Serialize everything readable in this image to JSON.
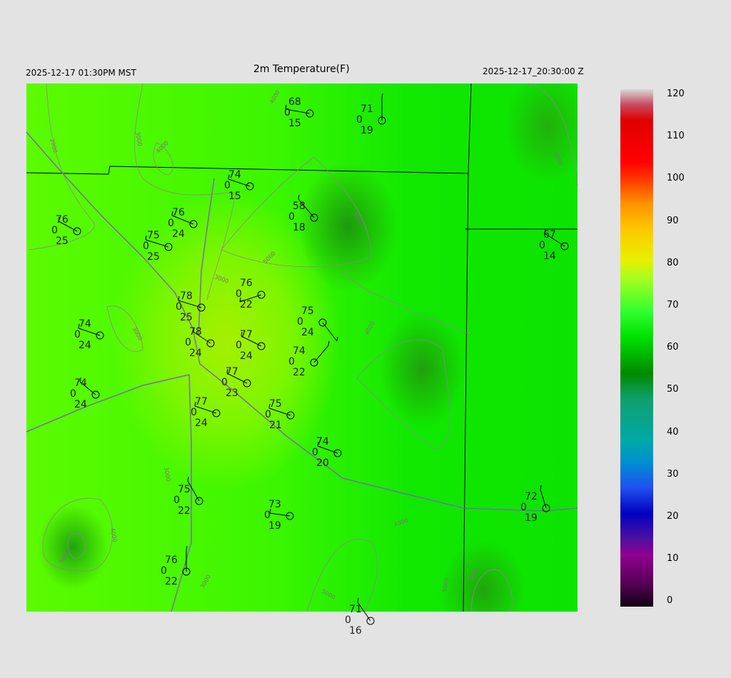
{
  "header": {
    "title": "2m Temperature(F)",
    "local_time": "2025-12-17 01:30PM MST",
    "utc_time": "2025-12-17_20:30:00 Z"
  },
  "colorbar": {
    "labels": [
      "120",
      "110",
      "100",
      "90",
      "80",
      "70",
      "60",
      "50",
      "40",
      "30",
      "20",
      "10",
      "0"
    ],
    "min": 0,
    "max": 120
  },
  "contour_labels": [
    "2000",
    "3000",
    "4000",
    "3000",
    "4000",
    "5000",
    "4000",
    "4000",
    "5000",
    "3000",
    "3000",
    "4000",
    "4000",
    "5000",
    "3000",
    "5000",
    "5000",
    "6000"
  ],
  "stations": [
    {
      "temp": "68",
      "cloud": "0",
      "dew": "15"
    },
    {
      "temp": "71",
      "cloud": "0",
      "dew": "19"
    },
    {
      "temp": "74",
      "cloud": "0",
      "dew": "15"
    },
    {
      "temp": "76",
      "cloud": "0",
      "dew": "25"
    },
    {
      "temp": "76",
      "cloud": "0",
      "dew": "24"
    },
    {
      "temp": "75",
      "cloud": "0",
      "dew": "25"
    },
    {
      "temp": "58",
      "cloud": "0",
      "dew": "18"
    },
    {
      "temp": "67",
      "cloud": "0",
      "dew": "14"
    },
    {
      "temp": "78",
      "cloud": "0",
      "dew": "25"
    },
    {
      "temp": "76",
      "cloud": "0",
      "dew": "22"
    },
    {
      "temp": "74",
      "cloud": "0",
      "dew": "24"
    },
    {
      "temp": "78",
      "cloud": "0",
      "dew": "24"
    },
    {
      "temp": "77",
      "cloud": "0",
      "dew": "24"
    },
    {
      "temp": "75",
      "cloud": "0",
      "dew": "24"
    },
    {
      "temp": "74",
      "cloud": "0",
      "dew": "22"
    },
    {
      "temp": "74",
      "cloud": "0",
      "dew": "24"
    },
    {
      "temp": "77",
      "cloud": "0",
      "dew": "23"
    },
    {
      "temp": "77",
      "cloud": "0",
      "dew": "24"
    },
    {
      "temp": "75",
      "cloud": "0",
      "dew": "21"
    },
    {
      "temp": "74",
      "cloud": "0",
      "dew": "20"
    },
    {
      "temp": "75",
      "cloud": "0",
      "dew": "22"
    },
    {
      "temp": "73",
      "cloud": "0",
      "dew": "19"
    },
    {
      "temp": "72",
      "cloud": "0",
      "dew": "19"
    },
    {
      "temp": "76",
      "cloud": "0",
      "dew": "22"
    },
    {
      "temp": "71",
      "cloud": "0",
      "dew": "16"
    }
  ]
}
